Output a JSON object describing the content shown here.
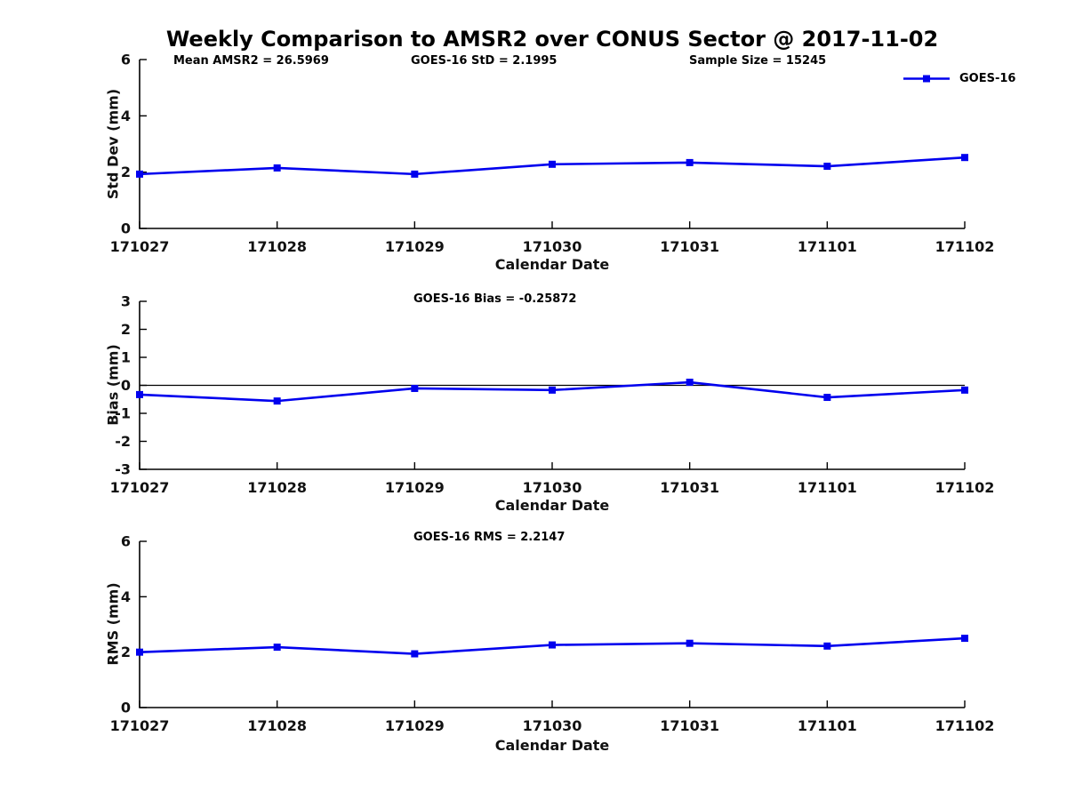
{
  "title": "Weekly Comparison to AMSR2 over CONUS Sector @ 2017-11-02",
  "legend": {
    "label": "GOES-16"
  },
  "colors": {
    "series": "#0000ee",
    "axis": "#000000",
    "text": "#111111"
  },
  "chart_data": [
    {
      "type": "line",
      "categories": [
        "171027",
        "171028",
        "171029",
        "171030",
        "171031",
        "171101",
        "171102"
      ],
      "series": [
        {
          "name": "GOES-16",
          "values": [
            1.93,
            2.15,
            1.93,
            2.28,
            2.34,
            2.21,
            2.52
          ]
        }
      ],
      "xlabel": "Calendar Date",
      "ylabel": "Std Dev (mm)",
      "ylim": [
        0,
        6
      ],
      "yticks": [
        0,
        2,
        4,
        6
      ],
      "zero_line": false,
      "grid": false,
      "legend_position": "top-right",
      "annotations": [
        {
          "text": "Mean AMSR2 = 26.5969"
        },
        {
          "text": "GOES-16 StD = 2.1995"
        },
        {
          "text": "Sample Size = 15245"
        }
      ]
    },
    {
      "type": "line",
      "categories": [
        "171027",
        "171028",
        "171029",
        "171030",
        "171031",
        "171101",
        "171102"
      ],
      "series": [
        {
          "name": "GOES-16",
          "values": [
            -0.33,
            -0.56,
            -0.11,
            -0.17,
            0.11,
            -0.43,
            -0.17
          ]
        }
      ],
      "xlabel": "Calendar Date",
      "ylabel": "Bias (mm)",
      "ylim": [
        -3,
        3
      ],
      "yticks": [
        -3,
        -2,
        -1,
        0,
        1,
        2,
        3
      ],
      "zero_line": true,
      "grid": false,
      "annotations": [
        {
          "text": "GOES-16 Bias  = -0.25872"
        }
      ]
    },
    {
      "type": "line",
      "categories": [
        "171027",
        "171028",
        "171029",
        "171030",
        "171031",
        "171101",
        "171102"
      ],
      "series": [
        {
          "name": "GOES-16",
          "values": [
            2.0,
            2.18,
            1.94,
            2.26,
            2.32,
            2.22,
            2.5
          ]
        }
      ],
      "xlabel": "Calendar Date",
      "ylabel": "RMS (mm)",
      "ylim": [
        0,
        6
      ],
      "yticks": [
        0,
        2,
        4,
        6
      ],
      "zero_line": false,
      "grid": false,
      "annotations": [
        {
          "text": "GOES-16 RMS = 2.2147"
        }
      ]
    }
  ]
}
